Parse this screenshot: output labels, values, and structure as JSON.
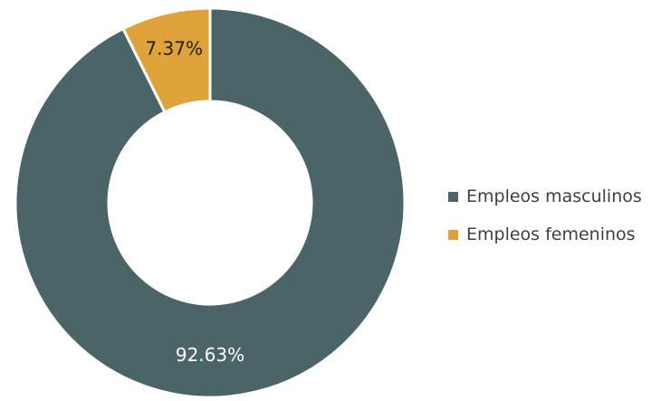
{
  "chart_data": {
    "type": "pie",
    "title": "",
    "slices": [
      {
        "name": "Empleos masculinos",
        "value": 92.63,
        "label": "92.63%",
        "color": "#4b6468",
        "label_color": "#ffffff"
      },
      {
        "name": "Empleos femeninos",
        "value": 7.37,
        "label": "7.37%",
        "color": "#e0a23a",
        "label_color": "#1f1f1f"
      }
    ],
    "donut": true,
    "legend": {
      "position": "right",
      "items": [
        "Empleos masculinos",
        "Empleos femeninos"
      ]
    }
  }
}
